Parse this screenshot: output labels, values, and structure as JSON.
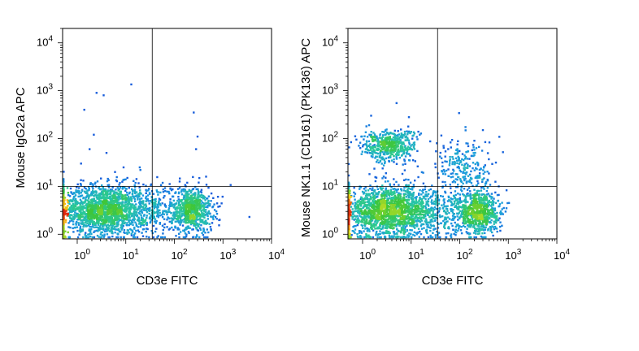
{
  "chart_data": [
    {
      "type": "scatter",
      "title": "",
      "xlabel": "CD3e FITC",
      "ylabel": "Mouse IgG2a APC",
      "x_scale": "log",
      "y_scale": "log",
      "xlim": [
        0.5,
        10000
      ],
      "ylim": [
        0.8,
        20000
      ],
      "x_ticks": [
        1,
        10,
        100,
        1000,
        10000
      ],
      "y_ticks": [
        1,
        10,
        100,
        1000,
        10000
      ],
      "quadrant_gate": {
        "x": 35,
        "y": 10
      },
      "color_mode": "density (blue to red)",
      "populations": [
        {
          "name": "",
          "x_center": 3.5,
          "y_center": 3.2,
          "count": 1700,
          "x_spread": 0.45,
          "y_spread": 0.26
        },
        {
          "name": "",
          "x_center": 230,
          "y_center": 3.2,
          "count": 750,
          "x_spread": 0.22,
          "y_spread": 0.24
        },
        {
          "name": "",
          "x_center": 35,
          "y_center": 3,
          "count": 260,
          "x_spread": 0.35,
          "y_spread": 0.28
        }
      ],
      "outlier_points": [
        [
          2.5,
          900
        ],
        [
          3.5,
          800
        ],
        [
          13,
          1350
        ],
        [
          1.4,
          400
        ],
        [
          2.2,
          120
        ],
        [
          250,
          350
        ],
        [
          3500,
          2.3
        ],
        [
          1.8,
          60
        ],
        [
          4,
          50
        ],
        [
          1.2,
          30
        ],
        [
          300,
          110
        ],
        [
          280,
          60
        ],
        [
          9,
          25
        ],
        [
          6,
          20
        ],
        [
          20,
          22
        ]
      ]
    },
    {
      "type": "scatter",
      "title": "",
      "xlabel": "CD3e FITC",
      "ylabel": "Mouse NK1.1 (CD161) (PK136) APC",
      "x_scale": "log",
      "y_scale": "log",
      "xlim": [
        0.5,
        10000
      ],
      "ylim": [
        0.8,
        20000
      ],
      "x_ticks": [
        1,
        10,
        100,
        1000,
        10000
      ],
      "y_ticks": [
        1,
        10,
        100,
        1000,
        10000
      ],
      "quadrant_gate": {
        "x": 35,
        "y": 10
      },
      "color_mode": "density (blue to red)",
      "populations": [
        {
          "name": "",
          "x_center": 3.5,
          "y_center": 3.0,
          "count": 1700,
          "x_spread": 0.45,
          "y_spread": 0.26
        },
        {
          "name": "",
          "x_center": 230,
          "y_center": 3.0,
          "count": 750,
          "x_spread": 0.22,
          "y_spread": 0.24
        },
        {
          "name": "",
          "x_center": 3.5,
          "y_center": 70,
          "count": 500,
          "x_spread": 0.28,
          "y_spread": 0.17
        },
        {
          "name": "",
          "x_center": 130,
          "y_center": 25,
          "count": 230,
          "x_spread": 0.3,
          "y_spread": 0.3
        },
        {
          "name": "",
          "x_center": 35,
          "y_center": 3,
          "count": 260,
          "x_spread": 0.35,
          "y_spread": 0.28
        }
      ],
      "outlier_points": [
        [
          5,
          550
        ],
        [
          9,
          280
        ],
        [
          1.5,
          300
        ],
        [
          700,
          3
        ],
        [
          300,
          150
        ],
        [
          200,
          90
        ],
        [
          15,
          120
        ],
        [
          1.2,
          180
        ]
      ]
    }
  ]
}
